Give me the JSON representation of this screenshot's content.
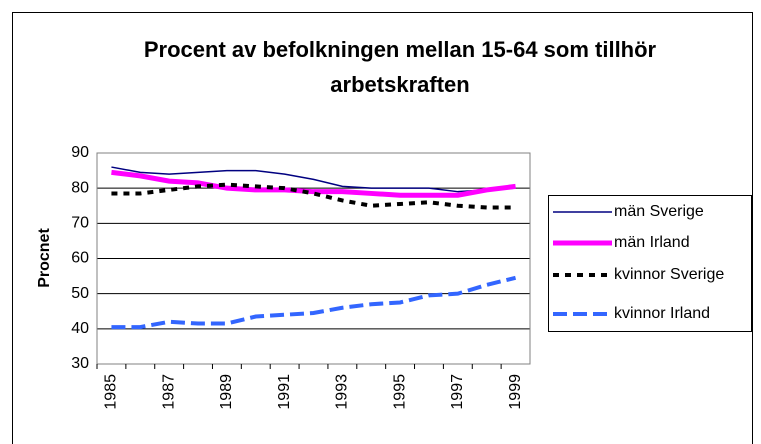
{
  "chart_data": {
    "type": "line",
    "title": "Procent av befolkningen mellan 15-64 som tillhör arbetskraften",
    "y_label": "Procnet",
    "categories": [
      "1985",
      null,
      "1987",
      null,
      "1989",
      null,
      "1991",
      null,
      "1993",
      null,
      "1995",
      null,
      "1997",
      null,
      "1999"
    ],
    "series": [
      {
        "name": "män Sverige",
        "color": "#000080",
        "style": "thin",
        "values": [
          86,
          84.5,
          84,
          84.5,
          85,
          85,
          84,
          82.5,
          80.5,
          80,
          80,
          80,
          79,
          79.5,
          80
        ]
      },
      {
        "name": "män Irland",
        "color": "#ff00ff",
        "style": "thick",
        "values": [
          84.5,
          83.5,
          82,
          81.5,
          80,
          79.5,
          79.5,
          79,
          79,
          78.5,
          78,
          78,
          78,
          79.5,
          80.5
        ]
      },
      {
        "name": "kvinnor Sverige",
        "color": "#000000",
        "style": "dotted",
        "values": [
          78.5,
          78.5,
          79.5,
          80.5,
          81,
          80.5,
          80,
          78.5,
          76.5,
          75,
          75.5,
          76,
          75,
          74.5,
          74.5
        ]
      },
      {
        "name": "kvinnor Irland",
        "color": "#3366ff",
        "style": "dashed",
        "values": [
          40.5,
          40.5,
          42,
          41.5,
          41.5,
          43.5,
          44,
          44.5,
          46,
          47,
          47.5,
          49.5,
          50,
          52.5,
          54.5
        ]
      }
    ],
    "ylim": [
      30,
      90
    ],
    "yticks": [
      30,
      40,
      50,
      60,
      70,
      80,
      90
    ],
    "grid": true,
    "legend": "right"
  }
}
